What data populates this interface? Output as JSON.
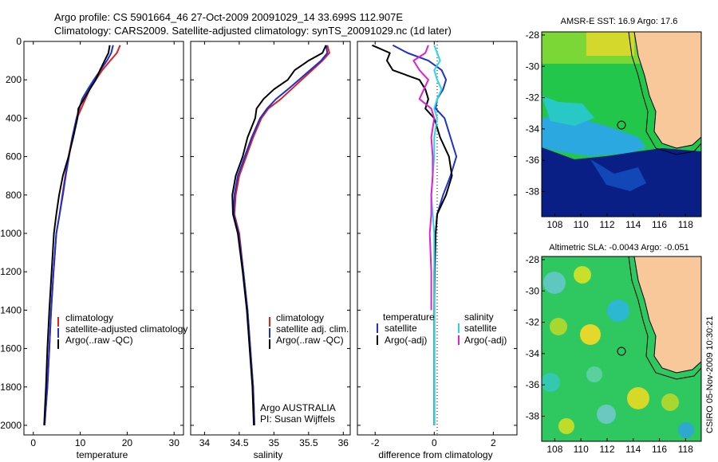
{
  "header": {
    "line1": "Argo profile: CS 5901664_46 27-Oct-2009 20091029_14 33.699S 112.907E",
    "line2": "Climatology: CARS2009. Satellite-adjusted climatology: synTS_20091029.nc (1d later)"
  },
  "side_text": "CSIRO 05-Nov-2009 10:30:21",
  "colors": {
    "climatology": "#e0201b",
    "satellite": "#1f2fd6",
    "argo": "#000000",
    "satellite_sal": "#22d8e8",
    "argo_sal": "#e020d8",
    "land": "#f8c89a",
    "deep_blue": "#0a1f86"
  },
  "chart_data": [
    {
      "type": "line",
      "panel": "temperature",
      "xlabel": "temperature",
      "xlim": [
        -2,
        32
      ],
      "ylim": [
        0,
        2050
      ],
      "y_reversed": true,
      "xticks": [
        "0",
        "10",
        "20",
        "30"
      ],
      "yticks": [
        "0",
        "200",
        "400",
        "600",
        "800",
        "1000",
        "1200",
        "1400",
        "1600",
        "1800",
        "2000"
      ],
      "legend": [
        "climatology",
        "satellite-adjusted climatology",
        "Argo(..raw -QC)"
      ],
      "series": [
        {
          "name": "climatology",
          "color_key": "climatology",
          "x": [
            18.5,
            17.8,
            16.4,
            14.7,
            13.3,
            12.0,
            11.1,
            10.2,
            9.3,
            8.3,
            7.5,
            6.8,
            6.2,
            5.6,
            4.9,
            4.3,
            3.8,
            3.4,
            3.0,
            2.7,
            2.4
          ],
          "y": [
            20,
            60,
            100,
            150,
            200,
            250,
            300,
            350,
            400,
            500,
            600,
            700,
            800,
            900,
            1000,
            1200,
            1400,
            1600,
            1800,
            1900,
            2000
          ]
        },
        {
          "name": "satellite-adjusted climatology",
          "color_key": "satellite",
          "x": [
            17.0,
            16.6,
            15.7,
            14.3,
            12.9,
            11.6,
            10.4,
            9.8,
            9.2,
            8.3,
            7.6,
            6.9,
            6.3,
            5.6,
            4.9,
            4.3,
            3.8,
            3.4,
            3.0,
            2.7,
            2.4
          ],
          "y": [
            20,
            60,
            100,
            150,
            200,
            250,
            300,
            350,
            400,
            500,
            600,
            700,
            800,
            900,
            1000,
            1200,
            1400,
            1600,
            1800,
            1900,
            2000
          ]
        },
        {
          "name": "Argo(..raw -QC)",
          "color_key": "argo",
          "x": [
            16.3,
            16.0,
            15.2,
            14.2,
            13.3,
            12.0,
            10.8,
            9.6,
            9.4,
            8.5,
            7.5,
            6.3,
            5.5,
            4.9,
            4.4,
            3.9,
            3.4,
            3.0,
            2.7,
            2.3
          ],
          "y": [
            20,
            60,
            100,
            150,
            200,
            250,
            300,
            350,
            400,
            500,
            600,
            700,
            800,
            900,
            1000,
            1200,
            1400,
            1600,
            1800,
            2000
          ]
        }
      ]
    },
    {
      "type": "line",
      "panel": "salinity",
      "xlabel": "salinity",
      "xlim": [
        33.8,
        36.1
      ],
      "ylim": [
        0,
        2050
      ],
      "y_reversed": true,
      "xticks": [
        "34",
        "34.5",
        "35",
        "35.5",
        "36"
      ],
      "legend": [
        "climatology",
        "satellite adj. clim.",
        "Argo(..raw -QC)"
      ],
      "annotations": [
        "Argo AUSTRALIA",
        "PI: Susan Wijffels"
      ],
      "series": [
        {
          "name": "climatology",
          "color_key": "climatology",
          "x": [
            35.77,
            35.8,
            35.7,
            35.55,
            35.4,
            35.25,
            35.1,
            34.92,
            34.82,
            34.7,
            34.6,
            34.5,
            34.45,
            34.43,
            34.5,
            34.56,
            34.62,
            34.66,
            34.7,
            34.72
          ],
          "y": [
            20,
            60,
            100,
            150,
            200,
            250,
            300,
            350,
            400,
            500,
            600,
            700,
            800,
            900,
            1000,
            1200,
            1400,
            1600,
            1800,
            2000
          ]
        },
        {
          "name": "satellite adj. clim.",
          "color_key": "satellite",
          "x": [
            35.75,
            35.77,
            35.68,
            35.52,
            35.36,
            35.2,
            35.03,
            34.9,
            34.8,
            34.68,
            34.58,
            34.48,
            34.43,
            34.42,
            34.49,
            34.56,
            34.62,
            34.66,
            34.7,
            34.72
          ],
          "y": [
            20,
            60,
            100,
            150,
            200,
            250,
            300,
            350,
            400,
            500,
            600,
            700,
            800,
            900,
            1000,
            1200,
            1400,
            1600,
            1800,
            2000
          ]
        },
        {
          "name": "Argo(..raw -QC)",
          "color_key": "argo",
          "x": [
            35.75,
            35.7,
            35.5,
            35.3,
            35.2,
            35.0,
            34.85,
            34.75,
            34.73,
            34.62,
            34.55,
            34.45,
            34.4,
            34.41,
            34.48,
            34.55,
            34.61,
            34.65,
            34.69,
            34.71
          ],
          "y": [
            20,
            60,
            100,
            150,
            200,
            250,
            300,
            350,
            400,
            500,
            600,
            700,
            800,
            900,
            1000,
            1200,
            1400,
            1600,
            1800,
            2000
          ]
        }
      ]
    },
    {
      "type": "line",
      "panel": "difference",
      "xlabel": "difference from climatology",
      "xlim": [
        -2.6,
        2.8
      ],
      "ylim": [
        0,
        2050
      ],
      "y_reversed": true,
      "xticks": [
        "-2",
        "0",
        "2"
      ],
      "legend_titles": [
        "temperature",
        "salinity"
      ],
      "legend": [
        "satellite",
        "Argo(-adj)",
        "satellite",
        "Argo(-adj)"
      ],
      "series": [
        {
          "name": "satellite",
          "color_key": "satellite",
          "x": [
            -1.4,
            -0.9,
            -0.2,
            0.25,
            0.4,
            0.3,
            0.1,
            0.05,
            0.35,
            0.55,
            0.75,
            0.55,
            0.3,
            0.1,
            0.05,
            0.02,
            0.0,
            0.0,
            0.0,
            0.0
          ],
          "y": [
            20,
            60,
            100,
            150,
            200,
            250,
            300,
            350,
            400,
            500,
            600,
            700,
            800,
            900,
            1000,
            1200,
            1400,
            1600,
            1800,
            2000
          ]
        },
        {
          "name": "Argo(-adj)",
          "color_key": "argo",
          "x": [
            -2.1,
            -1.5,
            -1.6,
            -1.4,
            -0.5,
            -0.3,
            -0.2,
            -0.3,
            0.0,
            0.2,
            0.5,
            0.6,
            0.4,
            0.1,
            0.05,
            0.0,
            0.0,
            0.0,
            0.0,
            0.0
          ],
          "y": [
            20,
            60,
            100,
            150,
            200,
            250,
            300,
            350,
            400,
            500,
            600,
            700,
            800,
            900,
            1000,
            1200,
            1400,
            1600,
            1800,
            2000
          ]
        },
        {
          "name": "satellite",
          "color_key": "satellite_sal",
          "x": [
            0.0,
            0.1,
            0.2,
            0.0,
            0.1,
            0.25,
            0.1,
            0.0,
            0.1,
            0.0,
            0.0,
            -0.05,
            -0.1,
            -0.05,
            0.0,
            0.0,
            0.0,
            0.0,
            0.0,
            0.0
          ],
          "y": [
            20,
            60,
            100,
            150,
            200,
            250,
            300,
            350,
            400,
            500,
            600,
            700,
            800,
            900,
            1000,
            1200,
            1400,
            1600,
            1800,
            2000
          ]
        },
        {
          "name": "Argo(-adj)",
          "color_key": "argo_sal",
          "x": [
            -0.2,
            -0.3,
            -0.7,
            -0.5,
            -0.2,
            -0.35,
            -0.5,
            -0.1,
            0.0,
            -0.1,
            -0.05,
            -0.05,
            -0.1,
            -0.1,
            -0.15,
            -0.1,
            -0.1
          ],
          "y": [
            20,
            60,
            100,
            150,
            200,
            250,
            300,
            350,
            400,
            500,
            600,
            700,
            800,
            900,
            1000,
            1200,
            1400
          ],
          "range": "top"
        }
      ]
    },
    {
      "type": "heatmap",
      "panel": "map_sst",
      "title": "AMSR-E SST: 16.9 Argo: 17.6",
      "xticks": [
        "108",
        "110",
        "112",
        "114",
        "116",
        "118"
      ],
      "yticks": [
        "-28",
        "-30",
        "-32",
        "-34",
        "-36",
        "-38"
      ],
      "xlim": [
        107,
        119.2
      ],
      "ylim": [
        -39.6,
        -27.8
      ],
      "marker": {
        "lon": 112.9,
        "lat": -33.7
      }
    },
    {
      "type": "heatmap",
      "panel": "map_sla",
      "title": "Altimetric SLA: -0.0043 Argo: -0.051",
      "xticks": [
        "108",
        "110",
        "112",
        "114",
        "116",
        "118"
      ],
      "yticks": [
        "-28",
        "-30",
        "-32",
        "-34",
        "-36",
        "-38"
      ],
      "xlim": [
        107,
        119.2
      ],
      "ylim": [
        -39.6,
        -27.8
      ],
      "marker": {
        "lon": 112.9,
        "lat": -33.7
      }
    }
  ]
}
